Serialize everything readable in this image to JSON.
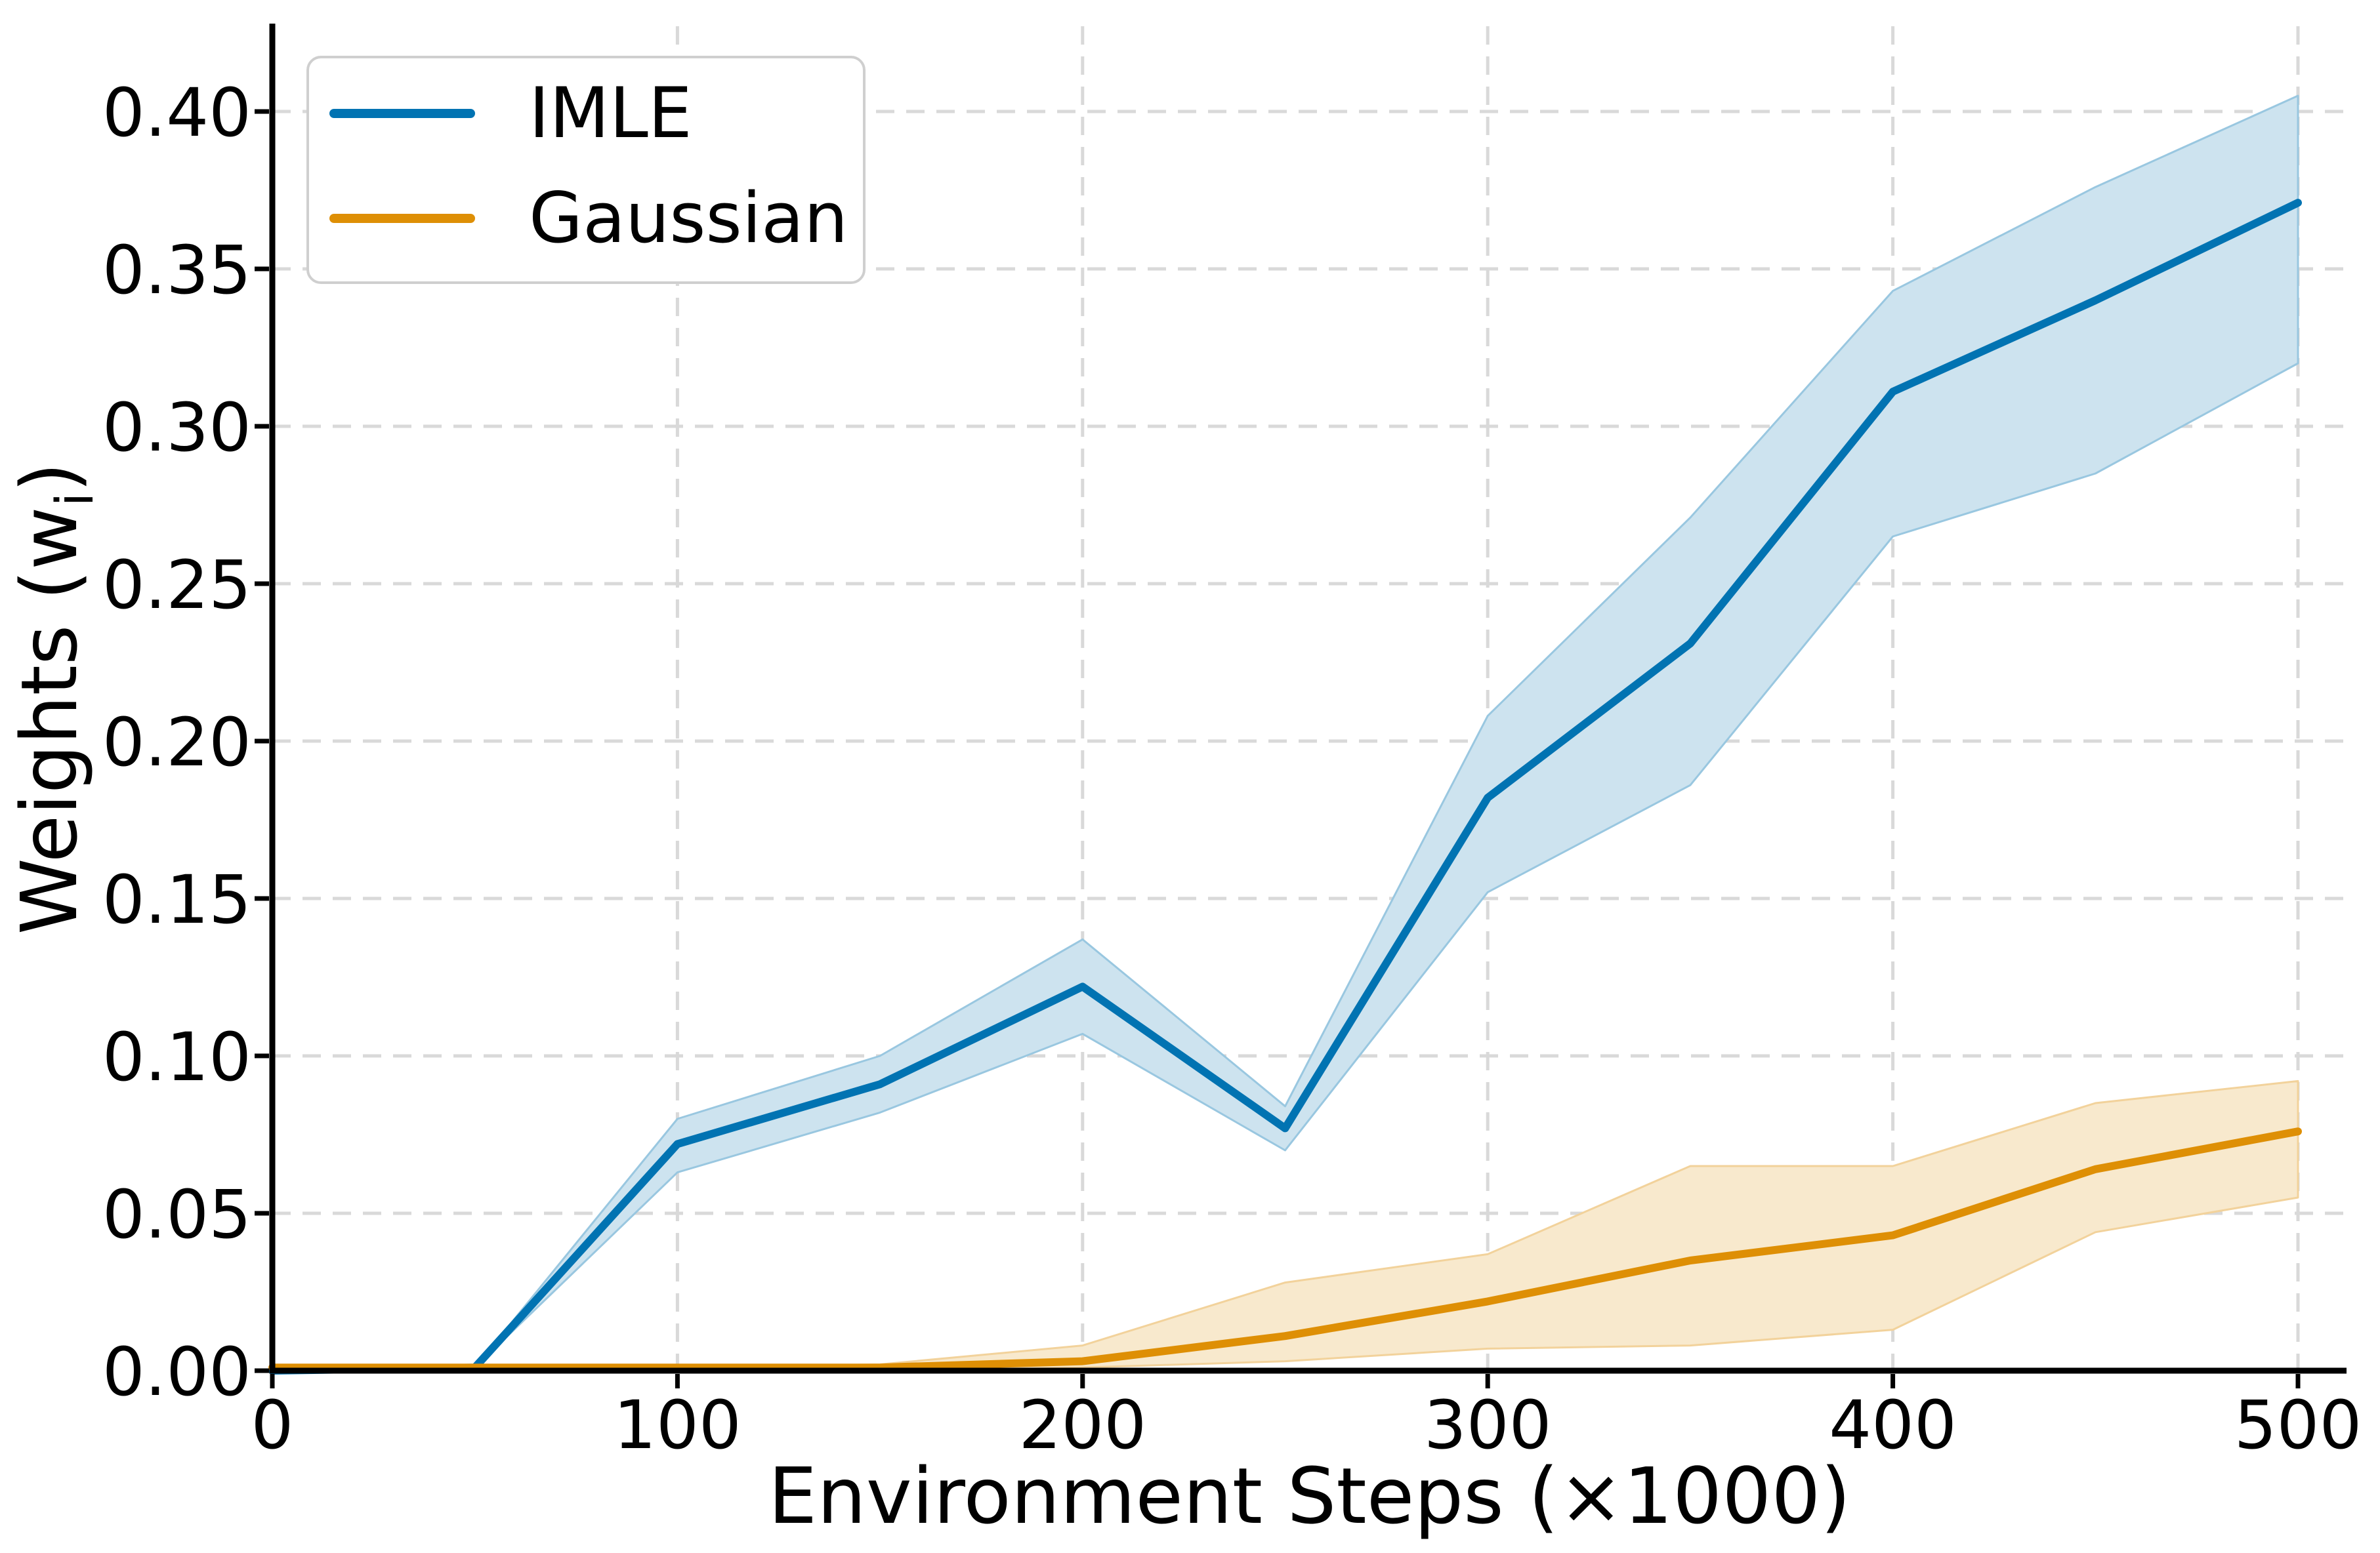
{
  "chart_data": {
    "type": "line",
    "xlabel": "Environment Steps (×1000)",
    "ylabel": "Weights (wᵢ)",
    "ylabel_prefix": "Weights (w",
    "ylabel_sub": "i",
    "ylabel_suffix": ")",
    "x": [
      0,
      50,
      100,
      150,
      200,
      250,
      300,
      350,
      400,
      450,
      500
    ],
    "xlim": [
      0,
      512
    ],
    "ylim": [
      0,
      0.427
    ],
    "x_tick_values": [
      0,
      100,
      200,
      300,
      400,
      500
    ],
    "x_tick_labels": [
      "0",
      "100",
      "200",
      "300",
      "400",
      "500"
    ],
    "y_tick_values": [
      0.0,
      0.05,
      0.1,
      0.15,
      0.2,
      0.25,
      0.3,
      0.35,
      0.4
    ],
    "y_tick_labels": [
      "0.00",
      "0.05",
      "0.10",
      "0.15",
      "0.20",
      "0.25",
      "0.30",
      "0.35",
      "0.40"
    ],
    "grid": {
      "on": true,
      "color": "#d9d9d9",
      "style": "dashed"
    },
    "legend_position": "upper left",
    "series": [
      {
        "name": "IMLE",
        "color": "#0173b2",
        "band_fill": "#cde3ef",
        "band_edge": "#99c7e0",
        "mean": [
          0.0,
          0.001,
          0.072,
          0.091,
          0.122,
          0.077,
          0.182,
          0.231,
          0.311,
          0.34,
          0.371
        ],
        "lower": [
          0.0,
          0.001,
          0.063,
          0.082,
          0.107,
          0.07,
          0.152,
          0.186,
          0.265,
          0.285,
          0.32
        ],
        "upper": [
          0.0,
          0.001,
          0.08,
          0.1,
          0.137,
          0.084,
          0.208,
          0.271,
          0.343,
          0.376,
          0.405
        ]
      },
      {
        "name": "Gaussian",
        "color": "#de8f05",
        "band_fill": "#f8e9cd",
        "band_edge": "#f2d29b",
        "mean": [
          0.001,
          0.001,
          0.001,
          0.001,
          0.003,
          0.011,
          0.022,
          0.035,
          0.043,
          0.064,
          0.076
        ],
        "lower": [
          0.0,
          0.0,
          0.0,
          0.0,
          0.001,
          0.003,
          0.007,
          0.008,
          0.013,
          0.044,
          0.055
        ],
        "upper": [
          0.001,
          0.001,
          0.001,
          0.002,
          0.008,
          0.028,
          0.037,
          0.065,
          0.065,
          0.085,
          0.092
        ]
      }
    ],
    "spine_color": "#000000"
  }
}
